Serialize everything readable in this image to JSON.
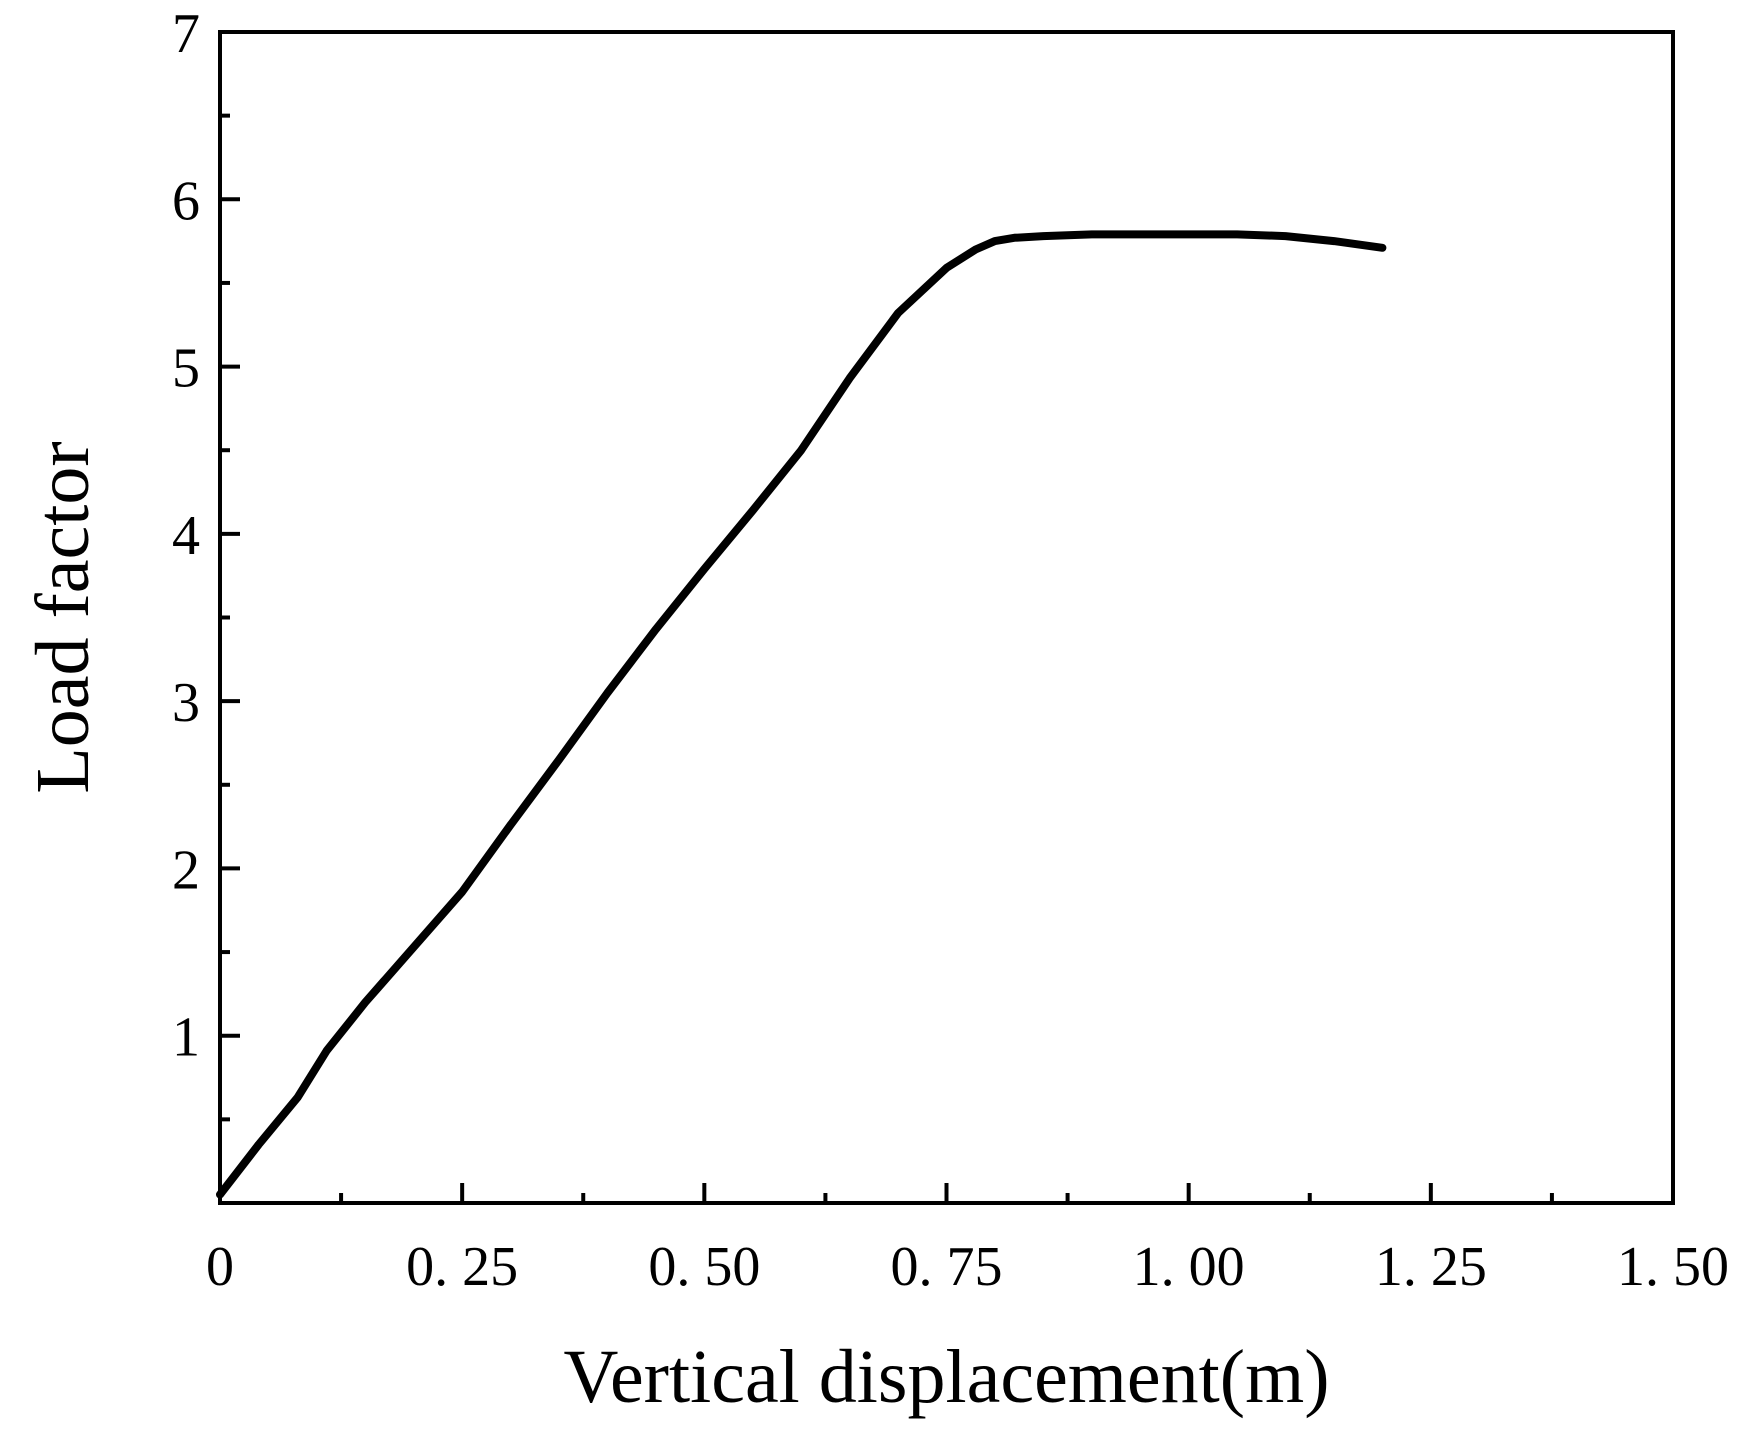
{
  "chart_data": {
    "type": "line",
    "title": "",
    "xlabel": "Vertical displacement(m)",
    "ylabel": "Load factor",
    "xlim": [
      0,
      1.5
    ],
    "ylim": [
      0,
      7
    ],
    "x_ticks": [
      0,
      0.25,
      0.5,
      0.75,
      1.0,
      1.25,
      1.5
    ],
    "x_tick_labels": [
      "0",
      "0. 25",
      "0. 50",
      "0. 75",
      "1. 00",
      "1. 25",
      "1. 50"
    ],
    "x_minor_ticks": [
      0.125,
      0.375,
      0.625,
      0.875,
      1.125,
      1.375
    ],
    "y_ticks": [
      1,
      2,
      3,
      4,
      5,
      6,
      7
    ],
    "y_tick_labels": [
      "1",
      "2",
      "3",
      "4",
      "5",
      "6",
      "7"
    ],
    "y_minor_ticks": [
      0.5,
      1.5,
      2.5,
      3.5,
      4.5,
      5.5,
      6.5
    ],
    "grid": false,
    "line_color": "#000000",
    "series": [
      {
        "x": [
          0,
          0.04,
          0.08,
          0.11,
          0.15,
          0.2,
          0.25,
          0.3,
          0.35,
          0.4,
          0.45,
          0.5,
          0.55,
          0.6,
          0.65,
          0.7,
          0.75,
          0.78,
          0.8,
          0.82,
          0.85,
          0.9,
          0.95,
          1.0,
          1.05,
          1.1,
          1.15,
          1.2
        ],
        "y": [
          0.05,
          0.35,
          0.63,
          0.91,
          1.2,
          1.53,
          1.86,
          2.26,
          2.65,
          3.05,
          3.43,
          3.79,
          4.14,
          4.5,
          4.93,
          5.32,
          5.59,
          5.7,
          5.75,
          5.77,
          5.78,
          5.79,
          5.79,
          5.79,
          5.79,
          5.78,
          5.75,
          5.71
        ]
      }
    ]
  }
}
